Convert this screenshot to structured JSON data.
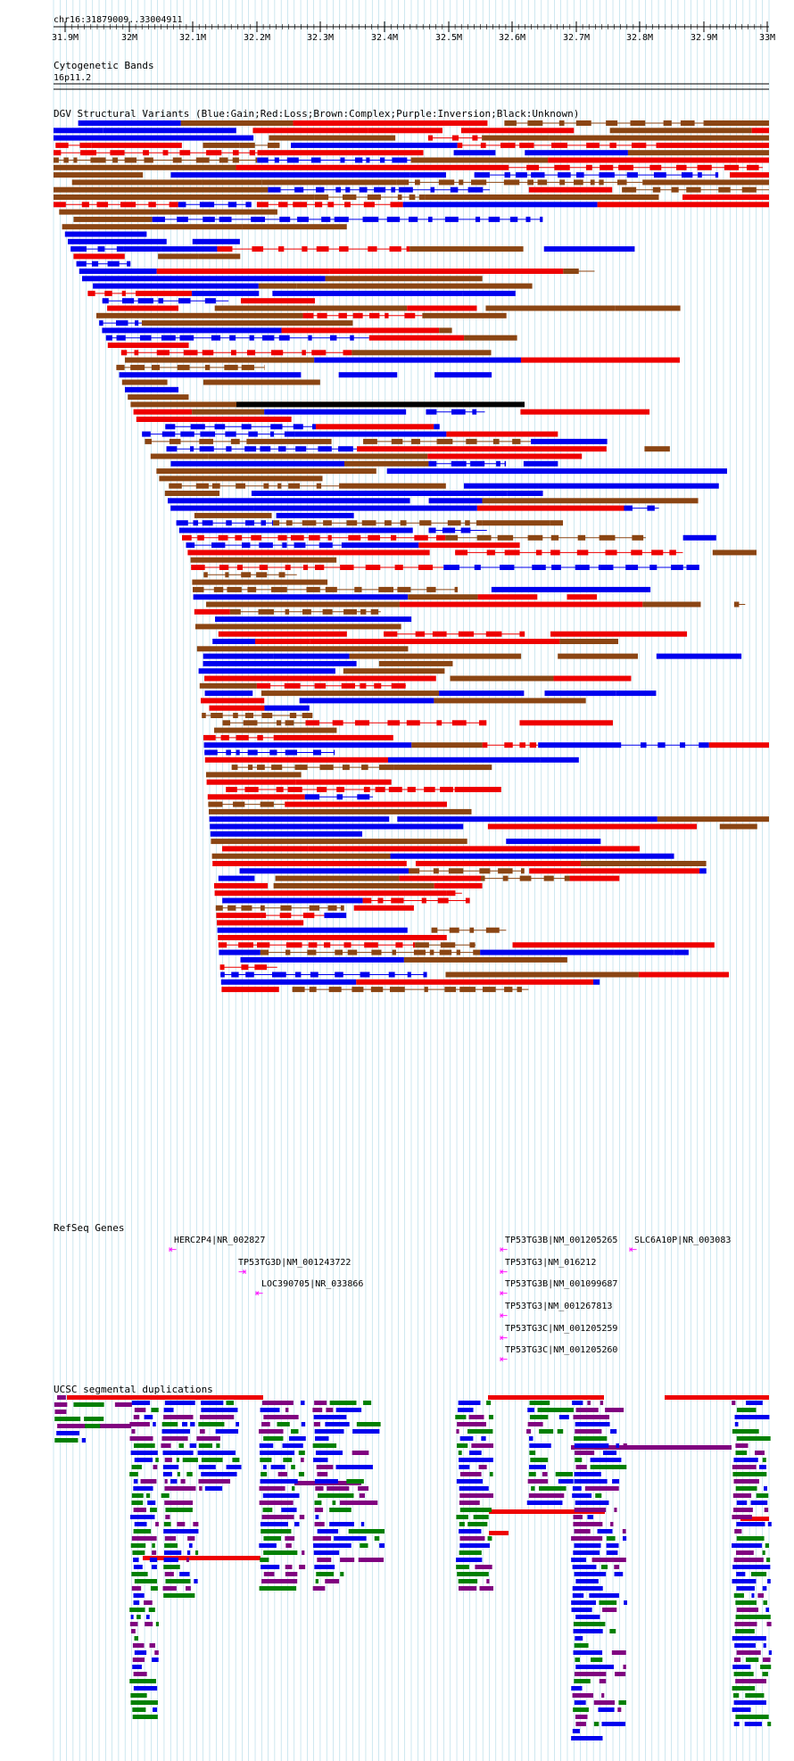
{
  "ruler": {
    "location": "chr16:31879009..33004911",
    "ticks": [
      "31.9M",
      "32M",
      "32.1M",
      "32.2M",
      "32.3M",
      "32.4M",
      "32.5M",
      "32.6M",
      "32.7M",
      "32.8M",
      "32.9M",
      "33M"
    ]
  },
  "tracks": {
    "cytoband": {
      "title": "Cytogenetic Bands",
      "band": "16p11.2"
    },
    "dgv": {
      "title": "DGV Structural Variants (Blue:Gain;Red:Loss;Brown:Complex;Purple:Inversion;Black:Unknown)"
    },
    "refseq": {
      "title": "RefSeq Genes",
      "genes": [
        "HERC2P4|NR_002827",
        "TP53TG3D|NM_001243722",
        "LOC390705|NR_033866",
        "TP53TG3B|NM_001205265",
        "SLC6A10P|NR_003083",
        "TP53TG3|NM_016212",
        "TP53TG3B|NM_001099687",
        "TP53TG3|NM_001267813",
        "TP53TG3C|NM_001205259",
        "TP53TG3C|NM_001205260"
      ]
    },
    "segdup": {
      "title": "UCSC segmental duplications"
    }
  },
  "colors": {
    "gain": "#0000ee",
    "loss": "#ee0000",
    "complex": "#8b4513",
    "inversion": "#800080",
    "unknown": "#000000",
    "segdup_green": "#008000",
    "gene": "#ff00ff",
    "gridline": "#add8e6"
  }
}
